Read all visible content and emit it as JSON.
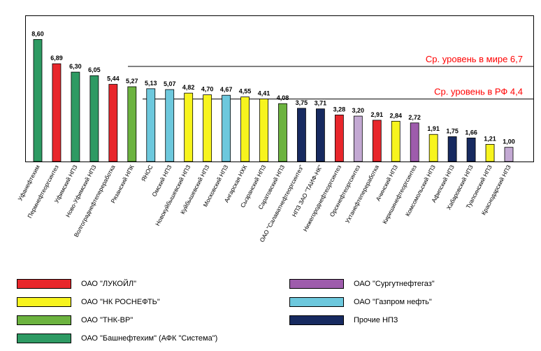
{
  "chart_data": {
    "type": "bar",
    "title": "",
    "xlabel": "",
    "ylabel": "",
    "ylim": [
      0,
      9
    ],
    "grid": false,
    "categories": [
      "Уфанефтехим",
      "Пермнефтеоргсинтез",
      "Уфимский НПЗ",
      "Ново-Уфимский НПЗ",
      "Волгограднефтепереработка",
      "Рязанский НПК",
      "ЯНОС",
      "Омский НПЗ",
      "Новокуйбышевский НПЗ",
      "Куйбышевский НПЗ",
      "Московский НПЗ",
      "Ангарская НХК",
      "Сызранский НПЗ",
      "Саратовский НПЗ",
      "ОАО \"Салаватнефтеоргсинтез\"",
      "НПЗ ЗАО \"ТАИФ-НК\"",
      "Нижегороднефтеоргсинтез",
      "Орскнефтеоргсинтез",
      "Ухтанефтепереработка",
      "Ачинский НПЗ",
      "Киришинефтеоргсинтез",
      "Комсомольский НПЗ",
      "Афипский НПЗ",
      "Хабаровский НПЗ",
      "Туапсинский НПЗ",
      "Краснодарский НПЗ"
    ],
    "values": [
      8.6,
      6.89,
      6.3,
      6.05,
      5.44,
      5.27,
      5.13,
      5.07,
      4.82,
      4.7,
      4.67,
      4.55,
      4.41,
      4.08,
      3.75,
      3.71,
      3.28,
      3.2,
      2.91,
      2.84,
      2.72,
      1.91,
      1.75,
      1.66,
      1.21,
      1.0
    ],
    "value_labels": [
      "8,60",
      "6,89",
      "6,30",
      "6,05",
      "5,44",
      "5,27",
      "5,13",
      "5,07",
      "4,82",
      "4,70",
      "4,67",
      "4,55",
      "4,41",
      "4,08",
      "3,75",
      "3,71",
      "3,28",
      "3,20",
      "2,91",
      "2,84",
      "2,72",
      "1,91",
      "1,75",
      "1,66",
      "1,21",
      "1,00"
    ],
    "groups": [
      "bashneft",
      "lukoil",
      "bashneft",
      "bashneft",
      "lukoil",
      "tnkbp",
      "gazpromneft",
      "gazpromneft",
      "rosneft",
      "rosneft",
      "gazpromneft",
      "rosneft",
      "rosneft",
      "tnkbp",
      "other",
      "other",
      "lukoil",
      "surgut",
      "lukoil",
      "rosneft",
      "surgut",
      "rosneft",
      "other",
      "other",
      "rosneft",
      "surgut"
    ],
    "reference_lines": [
      {
        "label": "Ср. уровень в мире 6,7",
        "value": 6.7,
        "color": "#ff0000"
      },
      {
        "label": "Ср. уровень в РФ 4,4",
        "value": 4.4,
        "color": "#ff0000"
      }
    ],
    "legend": [
      {
        "key": "lukoil",
        "label": "ОАО \"ЛУКОЙЛ\"",
        "color": "#e8262b"
      },
      {
        "key": "rosneft",
        "label": "ОАО \"НК РОСНЕФТЬ\"",
        "color": "#f7f41e"
      },
      {
        "key": "tnkbp",
        "label": "ОАО \"ТНК-ВР\"",
        "color": "#6cb33f"
      },
      {
        "key": "bashneft",
        "label": "ОАО \"Башнефтехим\" (АФК \"Система\")",
        "color": "#2e9a63"
      },
      {
        "key": "surgut",
        "label": "ОАО \"Сургутнефтегаз\"",
        "color": "#9e5cac"
      },
      {
        "key": "gazpromneft",
        "label": "ОАО \"Газпром нефть\"",
        "color": "#6dc8dd"
      },
      {
        "key": "other",
        "label": "Прочие НПЗ",
        "color": "#172a60"
      }
    ],
    "extra_colors": {
      "surgut_light": "#c3a9d3"
    },
    "legend_placement": "bottom"
  }
}
